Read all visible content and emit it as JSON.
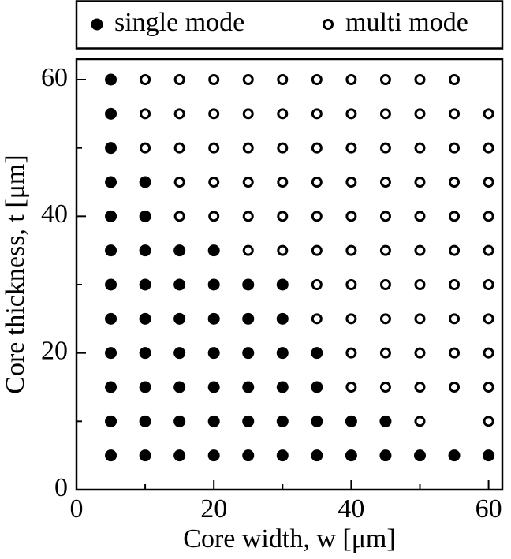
{
  "chart_data": {
    "type": "scatter",
    "xlabel": "Core width, w [μm]",
    "ylabel": "Core thickness, t [μm]",
    "xlim": [
      0,
      62
    ],
    "ylim": [
      0,
      63
    ],
    "xticks": [
      0,
      20,
      40,
      60
    ],
    "yticks": [
      0,
      20,
      40,
      60
    ],
    "minor_xticks": [
      10,
      30,
      50
    ],
    "minor_yticks": [
      10,
      30,
      50
    ],
    "legend": "top",
    "series": [
      {
        "name": "single mode",
        "color": "#000000",
        "filled": true,
        "x": [
          5,
          10,
          15,
          20,
          25,
          30,
          35,
          40,
          45,
          50,
          55,
          60,
          5,
          10,
          15,
          20,
          25,
          30,
          35,
          40,
          45,
          5,
          10,
          15,
          20,
          25,
          30,
          35,
          5,
          10,
          15,
          20,
          25,
          30,
          35,
          5,
          10,
          15,
          20,
          25,
          30,
          5,
          10,
          15,
          20,
          25,
          30,
          5,
          10,
          15,
          20,
          5,
          10,
          5,
          10,
          5,
          5,
          5
        ],
        "values": [
          5,
          5,
          5,
          5,
          5,
          5,
          5,
          5,
          5,
          5,
          5,
          5,
          10,
          10,
          10,
          10,
          10,
          10,
          10,
          10,
          10,
          15,
          15,
          15,
          15,
          15,
          15,
          15,
          20,
          20,
          20,
          20,
          20,
          20,
          20,
          25,
          25,
          25,
          25,
          25,
          25,
          30,
          30,
          30,
          30,
          30,
          30,
          35,
          35,
          35,
          35,
          40,
          40,
          45,
          45,
          50,
          55,
          60
        ]
      },
      {
        "name": "multi mode",
        "color": "#000000",
        "filled": false,
        "x": [
          50,
          60,
          40,
          45,
          50,
          55,
          60,
          40,
          45,
          50,
          55,
          60,
          35,
          40,
          45,
          50,
          55,
          60,
          35,
          40,
          45,
          50,
          55,
          60,
          25,
          30,
          35,
          40,
          45,
          50,
          55,
          60,
          15,
          20,
          25,
          30,
          35,
          40,
          45,
          50,
          55,
          60,
          15,
          20,
          25,
          30,
          35,
          40,
          45,
          50,
          55,
          60,
          10,
          15,
          20,
          25,
          30,
          35,
          40,
          45,
          50,
          55,
          60,
          10,
          15,
          20,
          25,
          30,
          35,
          40,
          45,
          50,
          55,
          60,
          10,
          15,
          20,
          25,
          30,
          35,
          40,
          45,
          50,
          55
        ],
        "values": [
          10,
          10,
          15,
          15,
          15,
          15,
          15,
          20,
          20,
          20,
          20,
          20,
          25,
          25,
          25,
          25,
          25,
          25,
          30,
          30,
          30,
          30,
          30,
          30,
          35,
          35,
          35,
          35,
          35,
          35,
          35,
          35,
          40,
          40,
          40,
          40,
          40,
          40,
          40,
          40,
          40,
          40,
          45,
          45,
          45,
          45,
          45,
          45,
          45,
          45,
          45,
          45,
          50,
          50,
          50,
          50,
          50,
          50,
          50,
          50,
          50,
          50,
          50,
          55,
          55,
          55,
          55,
          55,
          55,
          55,
          55,
          55,
          55,
          55,
          60,
          60,
          60,
          60,
          60,
          60,
          60,
          60,
          60,
          60
        ]
      }
    ]
  }
}
